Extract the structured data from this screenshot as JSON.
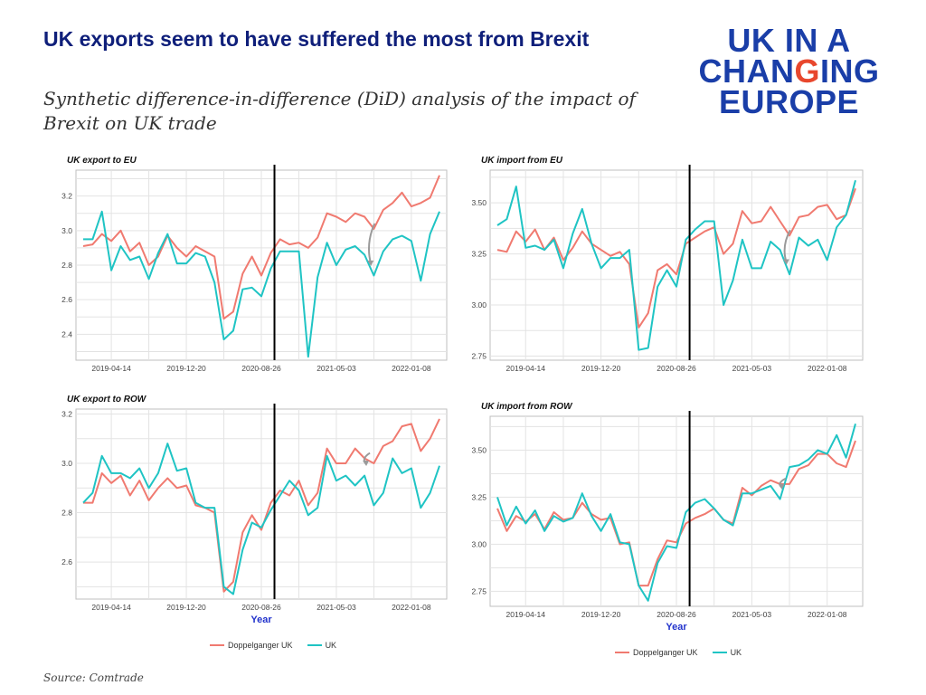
{
  "title": "UK exports seem to have suffered the most from Brexit",
  "subtitle": "Synthetic difference-in-difference (DiD) analysis of the impact of Brexit on UK trade",
  "logo": {
    "line1": "UK IN A",
    "line2a": "CHAN",
    "line2b": "G",
    "line2c": "ING",
    "line3": "EUROPE"
  },
  "source": "Source: Comtrade",
  "colors": {
    "doppelganger": "#f07a70",
    "uk": "#1fc4c4",
    "brand": "#0f1f7a",
    "accent": "#e8472d",
    "event_line": "#000000"
  },
  "legend_left": {
    "doppel": "Doppelganger UK",
    "uk": "UK"
  },
  "legend_right": {
    "doppel": "Doppelganger UK",
    "uk": "UK"
  },
  "chart_data": [
    {
      "type": "line",
      "title": "UK export to EU",
      "xlabel": "",
      "x_ticks": [
        "2019-04-14",
        "2019-12-20",
        "2020-08-26",
        "2021-05-03",
        "2022-01-08"
      ],
      "y_ticks": [
        2.4,
        2.6,
        2.8,
        3.0,
        3.2
      ],
      "ylim": [
        2.25,
        3.35
      ],
      "brexit_index": 20.4,
      "grid": true,
      "series": [
        {
          "name": "Doppelganger UK",
          "values": [
            2.91,
            2.92,
            2.98,
            2.94,
            3.0,
            2.88,
            2.93,
            2.8,
            2.85,
            2.97,
            2.9,
            2.85,
            2.91,
            2.88,
            2.85,
            2.49,
            2.53,
            2.75,
            2.85,
            2.74,
            2.87,
            2.95,
            2.92,
            2.93,
            2.9,
            2.96,
            3.1,
            3.08,
            3.05,
            3.1,
            3.08,
            3.01,
            3.12,
            3.16,
            3.22,
            3.14,
            3.16,
            3.19,
            3.32
          ]
        },
        {
          "name": "UK",
          "values": [
            2.95,
            2.95,
            3.11,
            2.77,
            2.91,
            2.83,
            2.85,
            2.72,
            2.87,
            2.98,
            2.81,
            2.81,
            2.87,
            2.85,
            2.7,
            2.37,
            2.42,
            2.66,
            2.67,
            2.62,
            2.78,
            2.88,
            2.88,
            2.88,
            2.27,
            2.73,
            2.93,
            2.8,
            2.89,
            2.91,
            2.86,
            2.74,
            2.88,
            2.95,
            2.97,
            2.94,
            2.71,
            2.98,
            3.11
          ]
        }
      ]
    },
    {
      "type": "line",
      "title": "UK import from EU",
      "xlabel": "",
      "x_ticks": [
        "2019-04-14",
        "2019-12-20",
        "2020-08-26",
        "2021-05-03",
        "2022-01-08"
      ],
      "y_ticks": [
        2.75,
        3.0,
        3.25,
        3.5
      ],
      "ylim": [
        2.73,
        3.66
      ],
      "brexit_index": 20.4,
      "grid": true,
      "series": [
        {
          "name": "Doppelganger UK",
          "values": [
            3.27,
            3.26,
            3.36,
            3.31,
            3.37,
            3.27,
            3.33,
            3.22,
            3.28,
            3.36,
            3.3,
            3.27,
            3.24,
            3.26,
            3.2,
            2.89,
            2.96,
            3.17,
            3.2,
            3.15,
            3.3,
            3.33,
            3.36,
            3.38,
            3.25,
            3.3,
            3.46,
            3.4,
            3.41,
            3.48,
            3.41,
            3.34,
            3.43,
            3.44,
            3.48,
            3.49,
            3.42,
            3.44,
            3.57
          ]
        },
        {
          "name": "UK",
          "values": [
            3.39,
            3.42,
            3.58,
            3.28,
            3.29,
            3.27,
            3.32,
            3.18,
            3.35,
            3.47,
            3.3,
            3.18,
            3.23,
            3.23,
            3.27,
            2.78,
            2.79,
            3.09,
            3.17,
            3.09,
            3.32,
            3.37,
            3.41,
            3.41,
            3.0,
            3.12,
            3.32,
            3.18,
            3.18,
            3.31,
            3.27,
            3.15,
            3.33,
            3.29,
            3.32,
            3.22,
            3.38,
            3.44,
            3.61
          ]
        }
      ]
    },
    {
      "type": "line",
      "title": "UK export to ROW",
      "xlabel": "Year",
      "x_ticks": [
        "2019-04-14",
        "2019-12-20",
        "2020-08-26",
        "2021-05-03",
        "2022-01-08"
      ],
      "y_ticks": [
        2.6,
        2.8,
        3.0,
        3.2
      ],
      "ylim": [
        2.45,
        3.22
      ],
      "brexit_index": 20.4,
      "grid": true,
      "series": [
        {
          "name": "Doppelganger UK",
          "values": [
            2.84,
            2.84,
            2.96,
            2.92,
            2.95,
            2.87,
            2.93,
            2.85,
            2.9,
            2.94,
            2.9,
            2.91,
            2.83,
            2.82,
            2.8,
            2.48,
            2.52,
            2.72,
            2.79,
            2.73,
            2.84,
            2.89,
            2.87,
            2.93,
            2.83,
            2.88,
            3.06,
            3.0,
            3.0,
            3.06,
            3.02,
            3.0,
            3.07,
            3.09,
            3.15,
            3.16,
            3.05,
            3.1,
            3.18
          ]
        },
        {
          "name": "UK",
          "values": [
            2.84,
            2.88,
            3.03,
            2.96,
            2.96,
            2.94,
            2.98,
            2.9,
            2.96,
            3.08,
            2.97,
            2.98,
            2.84,
            2.82,
            2.82,
            2.5,
            2.47,
            2.65,
            2.76,
            2.74,
            2.81,
            2.87,
            2.93,
            2.89,
            2.79,
            2.82,
            3.03,
            2.93,
            2.95,
            2.91,
            2.95,
            2.83,
            2.88,
            3.02,
            2.96,
            2.98,
            2.82,
            2.88,
            2.99
          ]
        }
      ]
    },
    {
      "type": "line",
      "title": "UK import from ROW",
      "xlabel": "Year",
      "x_ticks": [
        "2019-04-14",
        "2019-12-20",
        "2020-08-26",
        "2021-05-03",
        "2022-01-08"
      ],
      "y_ticks": [
        2.75,
        3.0,
        3.25,
        3.5
      ],
      "ylim": [
        2.67,
        3.68
      ],
      "brexit_index": 20.4,
      "grid": true,
      "series": [
        {
          "name": "Doppelganger UK",
          "values": [
            3.19,
            3.07,
            3.15,
            3.12,
            3.16,
            3.08,
            3.17,
            3.13,
            3.14,
            3.22,
            3.16,
            3.13,
            3.14,
            3.0,
            3.01,
            2.78,
            2.78,
            2.92,
            3.02,
            3.01,
            3.11,
            3.14,
            3.16,
            3.19,
            3.13,
            3.11,
            3.3,
            3.26,
            3.31,
            3.34,
            3.32,
            3.32,
            3.4,
            3.42,
            3.48,
            3.48,
            3.43,
            3.41,
            3.55
          ]
        },
        {
          "name": "UK",
          "values": [
            3.25,
            3.1,
            3.2,
            3.11,
            3.18,
            3.07,
            3.15,
            3.12,
            3.14,
            3.27,
            3.15,
            3.07,
            3.16,
            3.01,
            3.0,
            2.78,
            2.7,
            2.9,
            2.99,
            2.98,
            3.17,
            3.22,
            3.24,
            3.19,
            3.13,
            3.1,
            3.27,
            3.27,
            3.29,
            3.31,
            3.24,
            3.41,
            3.42,
            3.45,
            3.5,
            3.48,
            3.58,
            3.46,
            3.64
          ]
        }
      ]
    }
  ]
}
